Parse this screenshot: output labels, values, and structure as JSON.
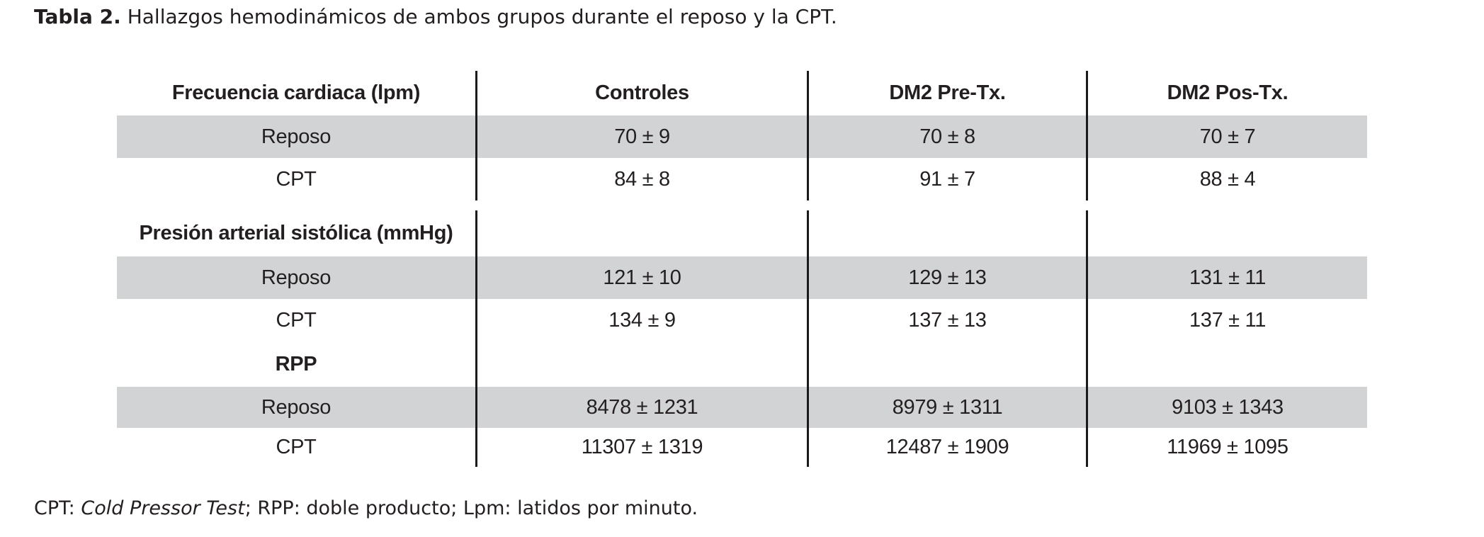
{
  "title": {
    "bold": "Tabla 2.",
    "rest": " Hallazgos hemodinámicos de ambos grupos durante el reposo y la CPT."
  },
  "table": {
    "header": [
      "Frecuencia cardiaca (lpm)",
      "Controles",
      "DM2 Pre-Tx.",
      "DM2 Pos-Tx."
    ],
    "sections": [
      {
        "rows": [
          {
            "label": "Reposo",
            "values": [
              "70 ± 9",
              "70 ± 8",
              "70 ± 7"
            ],
            "shaded": true
          },
          {
            "label": "CPT",
            "values": [
              "84 ± 8",
              "91 ± 7",
              "88 ± 4"
            ],
            "shaded": false
          }
        ]
      },
      {
        "title": "Presión arterial sistólica (mmHg)",
        "rows": [
          {
            "label": "Reposo",
            "values": [
              "121 ± 10",
              "129 ± 13",
              "131 ± 11"
            ],
            "shaded": true
          },
          {
            "label": "CPT",
            "values": [
              "134 ± 9",
              "137 ± 13",
              "137 ± 11"
            ],
            "shaded": false
          }
        ]
      },
      {
        "title": "RPP",
        "rows": [
          {
            "label": "Reposo",
            "values": [
              "8478 ± 1231",
              "8979 ± 1311",
              "9103 ± 1343"
            ],
            "shaded": true
          },
          {
            "label": "CPT",
            "values": [
              "11307 ± 1319",
              "12487 ± 1909",
              "11969 ± 1095"
            ],
            "shaded": false
          }
        ]
      }
    ]
  },
  "footnote": {
    "prefix": "CPT: ",
    "italic": "Cold Pressor Test",
    "suffix": "; RPP: doble producto; Lpm: latidos por minuto."
  },
  "colors": {
    "shaded_row": "#d1d3d4",
    "rule": "#1a1a1c",
    "text": "#231f20"
  }
}
